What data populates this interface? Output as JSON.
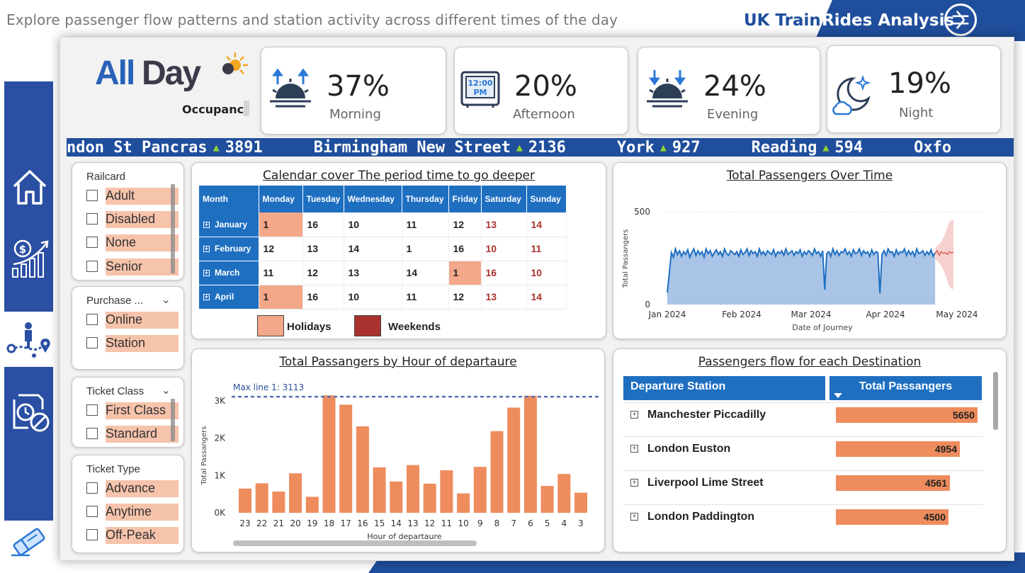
{
  "header": {
    "subtitle": "Explore passenger flow patterns and station activity across different times of the day",
    "title_part1": "UK Train",
    "title_part2": "Rides Analysis"
  },
  "sidebar": {
    "nav": [
      {
        "name": "home",
        "icon": "home-icon"
      },
      {
        "name": "revenue",
        "icon": "revenue-growth-icon"
      },
      {
        "name": "journey",
        "icon": "journey-route-icon"
      },
      {
        "name": "delays",
        "icon": "delay-clock-icon"
      },
      {
        "name": "ticket",
        "icon": "eraser-icon"
      }
    ]
  },
  "brand": {
    "logo_all": "All",
    "logo_day": "Day",
    "caption": "Occupanc"
  },
  "kpis": [
    {
      "value": "37%",
      "label": "Morning",
      "icon": "sunrise-icon"
    },
    {
      "value": "20%",
      "label": "Afternoon",
      "icon": "clock-12pm-icon"
    },
    {
      "value": "24%",
      "label": "Evening",
      "icon": "sunset-icon"
    },
    {
      "value": "19%",
      "label": "Night",
      "icon": "moon-cloud-icon"
    }
  ],
  "ticker": [
    {
      "station": "ndon St Pancras",
      "value": "3891"
    },
    {
      "station": "Birmingham New Street",
      "value": "2136"
    },
    {
      "station": "York",
      "value": "927"
    },
    {
      "station": "Reading",
      "value": "594"
    },
    {
      "station": "Oxfo",
      "value": ""
    }
  ],
  "slicers": {
    "railcard": {
      "title": "Railcard",
      "items": [
        "Adult",
        "Disabled",
        "None",
        "Senior"
      ]
    },
    "purchase": {
      "title": "Purchase ...",
      "items": [
        "Online",
        "Station"
      ]
    },
    "ticket_class": {
      "title": "Ticket Class",
      "items": [
        "First Class",
        "Standard"
      ]
    },
    "ticket_type": {
      "title": "Ticket Type",
      "items": [
        "Advance",
        "Anytime",
        "Off-Peak"
      ]
    }
  },
  "calendar": {
    "title": "Calendar cover The period time to go deeper",
    "columns": [
      "Month",
      "Monday",
      "Tuesday",
      "Wednesday",
      "Thursday",
      "Friday",
      "Saturday",
      "Sunday"
    ],
    "rows": [
      {
        "month": "January",
        "values": [
          "1",
          "16",
          "10",
          "11",
          "12",
          "13",
          "14"
        ],
        "holidays": [
          0
        ]
      },
      {
        "month": "February",
        "values": [
          "12",
          "13",
          "14",
          "1",
          "16",
          "10",
          "11"
        ],
        "holidays": []
      },
      {
        "month": "March",
        "values": [
          "11",
          "12",
          "13",
          "14",
          "1",
          "16",
          "10"
        ],
        "holidays": [
          4
        ]
      },
      {
        "month": "April",
        "values": [
          "1",
          "16",
          "10",
          "11",
          "12",
          "13",
          "14"
        ],
        "holidays": [
          0
        ]
      }
    ],
    "legend": {
      "holidays": "Holidays",
      "weekends": "Weekends"
    },
    "colors": {
      "holiday": "#f4a88a",
      "weekend": "#a9322e",
      "header": "#1f6fc1"
    }
  },
  "chart_data": [
    {
      "type": "area",
      "title": "Total Passengers Over Time",
      "xlabel": "Date of Journey",
      "ylabel": "Total Passangers",
      "x_ticks": [
        "Jan 2024",
        "Feb 2024",
        "Mar 2024",
        "Apr 2024",
        "May 2024"
      ],
      "y_ticks": [
        "0",
        "500"
      ],
      "ylim": [
        0,
        500
      ],
      "series": [
        {
          "values": [
            65,
            170,
            280,
            255,
            300,
            270,
            290,
            260,
            285,
            270,
            295,
            255,
            280,
            300,
            265,
            290,
            270,
            285,
            255,
            300,
            275,
            290,
            260,
            280,
            295,
            270,
            285,
            260,
            300,
            275,
            265,
            290,
            280,
            270,
            285,
            260,
            295,
            270,
            280,
            300,
            265,
            290,
            275,
            285,
            260,
            300,
            270,
            285,
            265,
            290,
            280,
            270,
            295,
            260,
            285,
            275,
            290,
            265,
            300,
            270,
            280,
            290,
            265,
            285,
            275,
            295,
            260,
            285,
            270,
            290,
            280,
            265,
            300,
            275,
            285,
            260,
            290,
            80,
            275,
            285,
            260,
            300,
            270,
            290,
            265,
            285,
            280,
            300,
            270,
            285,
            260,
            295,
            275,
            280,
            300,
            265,
            290,
            275,
            285,
            260,
            295,
            270,
            285,
            280,
            60,
            270,
            290,
            265,
            300,
            280,
            285,
            260,
            295,
            270,
            285,
            280,
            300,
            265,
            290,
            270,
            285,
            260,
            300,
            275,
            280,
            290,
            265,
            285,
            270,
            295,
            260,
            280
          ]
        },
        {
          "name": "forecast",
          "values": [
            275,
            290,
            265,
            285,
            275,
            280,
            270,
            285,
            278,
            282
          ]
        }
      ],
      "forecast_band": {
        "upper": 470,
        "lower": 70
      },
      "colors": {
        "area": "#a9c4e6",
        "line": "#1f6fc1",
        "forecast": "#e06060"
      }
    },
    {
      "type": "bar",
      "title": "Total Passangers by Hour of departaure",
      "xlabel": "Hour of departaure",
      "ylabel": "Total Passangers",
      "categories": [
        "23",
        "22",
        "21",
        "20",
        "19",
        "18",
        "17",
        "16",
        "15",
        "14",
        "13",
        "12",
        "11",
        "10",
        "9",
        "8",
        "7",
        "6",
        "5",
        "4",
        "3"
      ],
      "values": [
        650,
        790,
        570,
        1060,
        430,
        3150,
        2900,
        2320,
        1220,
        840,
        1280,
        780,
        1140,
        520,
        1230,
        2190,
        2820,
        3140,
        720,
        1040,
        540
      ],
      "y_ticks": [
        "0K",
        "1K",
        "2K",
        "3K"
      ],
      "ylim": [
        0,
        3400
      ],
      "max_line": {
        "label": "Max line 1: 3113",
        "value": 3113
      },
      "colors": {
        "bar": "#ee8c5e",
        "max_line": "#5a6fb3"
      }
    }
  ],
  "destinations": {
    "title": "Passengers flow for each Destination",
    "col_station": "Departure Station",
    "col_total": "Total Passangers",
    "max": 5650,
    "rows": [
      {
        "station": "Manchester Piccadilly",
        "value": 5650
      },
      {
        "station": "London Euston",
        "value": 4954
      },
      {
        "station": "Liverpool Lime Street",
        "value": 4561
      },
      {
        "station": "London Paddington",
        "value": 4500
      }
    ]
  }
}
